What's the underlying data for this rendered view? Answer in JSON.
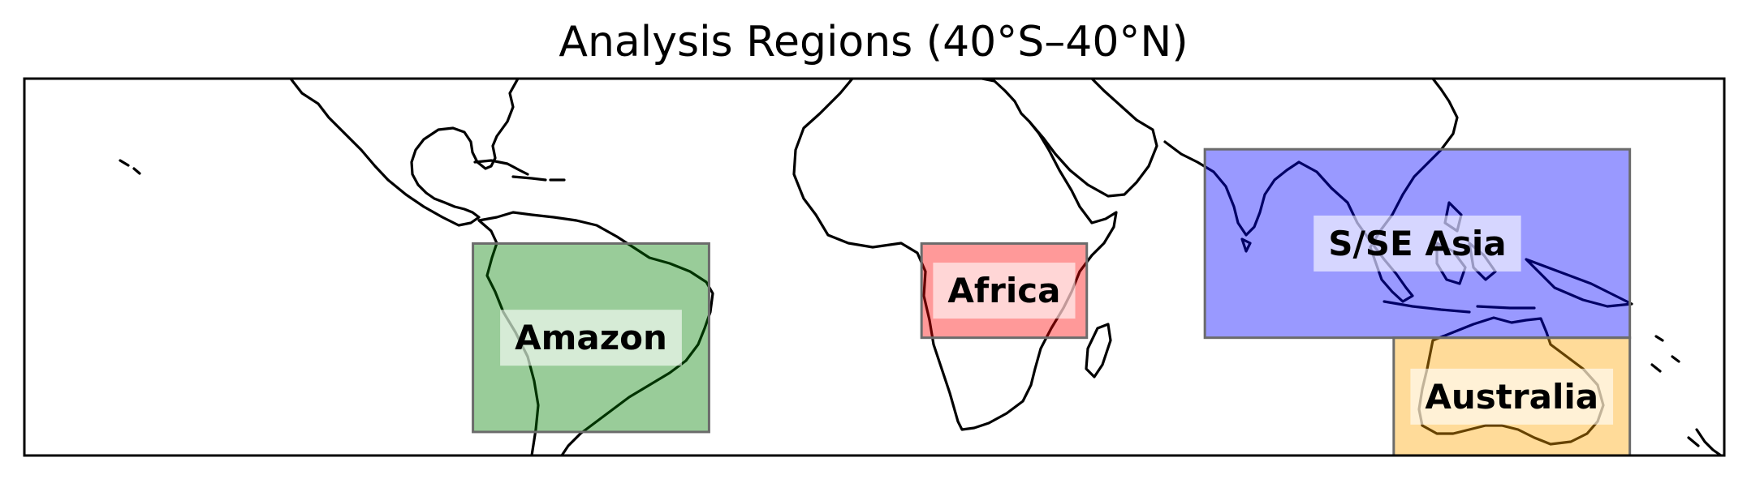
{
  "title": "Analysis Regions (40°S–40°N)",
  "map": {
    "extent": {
      "lon": [
        -180,
        180
      ],
      "lat": [
        -40,
        40
      ]
    },
    "regions": [
      {
        "name": "Amazon",
        "lon": [
          -85,
          -35
        ],
        "lat": [
          -35,
          5
        ],
        "color": "#008000",
        "opacity": 0.4
      },
      {
        "name": "Africa",
        "lon": [
          10,
          45
        ],
        "lat": [
          -15,
          5
        ],
        "color": "#ff0000",
        "opacity": 0.4
      },
      {
        "name": "S/SE Asia",
        "lon": [
          70,
          160
        ],
        "lat": [
          -15,
          25
        ],
        "color": "#0000ff",
        "opacity": 0.4
      },
      {
        "name": "Australia",
        "lon": [
          110,
          160
        ],
        "lat": [
          -45,
          -15
        ],
        "color": "#ffa500",
        "opacity": 0.4
      }
    ]
  }
}
